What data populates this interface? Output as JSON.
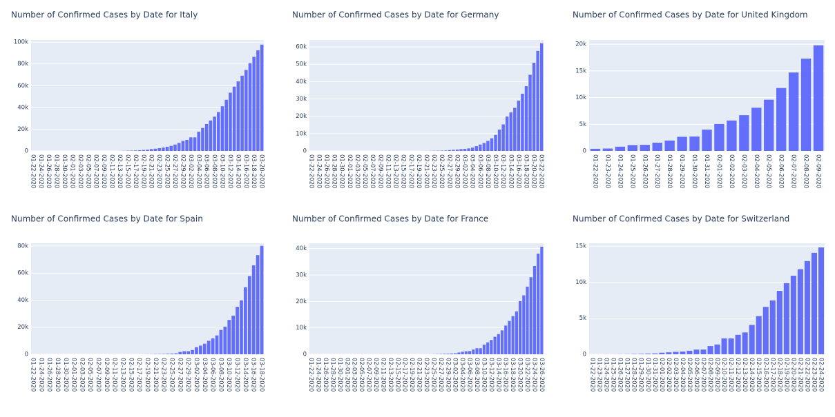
{
  "chart_data": [
    {
      "type": "bar",
      "title": "Number of Confirmed Cases by Date for Italy",
      "color": "#636efa",
      "grid": true,
      "categories": [
        "01-22-2020",
        null,
        "01-24-2020",
        null,
        "01-26-2020",
        null,
        "01-28-2020",
        null,
        "01-30-2020",
        null,
        "02-01-2020",
        null,
        "02-03-2020",
        null,
        "02-05-2020",
        null,
        "02-07-2020",
        null,
        "02-09-2020",
        null,
        "02-11-2020",
        null,
        "02-13-2020",
        null,
        "02-15-2020",
        null,
        "02-17-2020",
        null,
        "02-19-2020",
        null,
        "02-21-2020",
        null,
        "02-23-2020",
        null,
        "02-25-2020",
        null,
        "02-27-2020",
        null,
        "02-29-2020",
        null,
        "03-02-2020",
        null,
        "03-04-2020",
        null,
        "03-06-2020",
        null,
        "03-08-2020",
        null,
        "03-10-2020",
        null,
        "03-12-2020",
        null,
        "03-14-2020",
        null,
        "03-16-2020",
        null,
        "03-18-2020",
        null,
        "03-20-2020"
      ],
      "values": [
        0,
        0,
        0,
        0,
        0,
        0,
        0,
        0,
        0,
        2,
        2,
        2,
        2,
        2,
        2,
        2,
        3,
        3,
        3,
        3,
        3,
        20,
        62,
        155,
        229,
        322,
        453,
        655,
        888,
        1128,
        1694,
        2036,
        2502,
        3089,
        3858,
        4636,
        5883,
        7375,
        9172,
        10149,
        12462,
        12462,
        17660,
        21157,
        24747,
        27980,
        31506,
        35713,
        41035,
        47021,
        53578,
        59138,
        63927,
        69176,
        74386,
        80589,
        86498,
        92472,
        97689
      ],
      "ylim": [
        0,
        102000
      ],
      "yticks": [
        0,
        {
          "value": 20000,
          "label": "20k"
        },
        {
          "value": 40000,
          "label": "40k"
        },
        {
          "value": 60000,
          "label": "60k"
        },
        {
          "value": 80000,
          "label": "80k"
        },
        {
          "value": 100000,
          "label": "100k"
        }
      ]
    },
    {
      "type": "bar",
      "title": "Number of Confirmed Cases by Date for Germany",
      "color": "#636efa",
      "grid": true,
      "categories": [
        "01-22-2020",
        null,
        "01-24-2020",
        null,
        "01-26-2020",
        null,
        "01-28-2020",
        null,
        "01-30-2020",
        null,
        "02-01-2020",
        null,
        "02-03-2020",
        null,
        "02-05-2020",
        null,
        "02-07-2020",
        null,
        "02-09-2020",
        null,
        "02-11-2020",
        null,
        "02-13-2020",
        null,
        "02-15-2020",
        null,
        "02-17-2020",
        null,
        "02-19-2020",
        null,
        "02-21-2020",
        null,
        "02-23-2020",
        null,
        "02-25-2020",
        null,
        "02-27-2020",
        null,
        "02-29-2020",
        null,
        "03-02-2020",
        null,
        "03-04-2020",
        null,
        "03-06-2020",
        null,
        "03-08-2020",
        null,
        "03-10-2020",
        null,
        "03-12-2020",
        null,
        "03-14-2020",
        null,
        "03-16-2020",
        null,
        "03-18-2020",
        null,
        "03-20-2020",
        null,
        "03-22-2020"
      ],
      "values": [
        0,
        0,
        0,
        0,
        0,
        1,
        4,
        4,
        4,
        5,
        8,
        10,
        12,
        12,
        12,
        12,
        13,
        13,
        14,
        14,
        16,
        16,
        16,
        16,
        16,
        16,
        16,
        17,
        27,
        46,
        57,
        79,
        130,
        159,
        196,
        262,
        482,
        670,
        795,
        1040,
        1176,
        1457,
        1908,
        2745,
        3675,
        4585,
        5795,
        7272,
        9257,
        12327,
        15320,
        19848,
        22213,
        24873,
        29056,
        32986,
        37323,
        43938,
        50871,
        57695,
        62095
      ],
      "ylim": [
        0,
        64000
      ],
      "yticks": [
        0,
        {
          "value": 10000,
          "label": "10k"
        },
        {
          "value": 20000,
          "label": "20k"
        },
        {
          "value": 30000,
          "label": "30k"
        },
        {
          "value": 40000,
          "label": "40k"
        },
        {
          "value": 50000,
          "label": "50k"
        },
        {
          "value": 60000,
          "label": "60k"
        }
      ]
    },
    {
      "type": "bar",
      "title": "Number of Confirmed Cases by Date for United Kingdom",
      "color": "#636efa",
      "grid": true,
      "categories": [
        "01-22-2020",
        "01-23-2020",
        "01-24-2020",
        "01-25-2020",
        "01-26-2020",
        "01-27-2020",
        "01-28-2020",
        "01-29-2020",
        "01-30-2020",
        "01-31-2020",
        "02-01-2020",
        "02-02-2020",
        "02-03-2020",
        "02-04-2020",
        "02-05-2020",
        "02-06-2020",
        "02-07-2020",
        "02-08-2020",
        "02-09-2020"
      ],
      "values": [
        400,
        450,
        800,
        1100,
        1150,
        1550,
        1950,
        2650,
        2700,
        4000,
        5050,
        5700,
        6700,
        8100,
        9600,
        11800,
        14700,
        17300,
        19800
      ],
      "ylim": [
        0,
        20800
      ],
      "yticks": [
        0,
        {
          "value": 5000,
          "label": "5k"
        },
        {
          "value": 10000,
          "label": "10k"
        },
        {
          "value": 15000,
          "label": "15k"
        },
        {
          "value": 20000,
          "label": "20k"
        }
      ]
    },
    {
      "type": "bar",
      "title": "Number of Confirmed Cases by Date for Spain",
      "color": "#636efa",
      "grid": true,
      "categories": [
        "01-22-2020",
        null,
        "01-24-2020",
        null,
        "01-26-2020",
        null,
        "01-28-2020",
        null,
        "01-30-2020",
        null,
        "02-01-2020",
        null,
        "02-03-2020",
        null,
        "02-05-2020",
        null,
        "02-07-2020",
        null,
        "02-09-2020",
        null,
        "02-11-2020",
        null,
        "02-13-2020",
        null,
        "02-15-2020",
        null,
        "02-17-2020",
        null,
        "02-19-2020",
        null,
        "02-21-2020",
        null,
        "02-23-2020",
        null,
        "02-25-2020",
        null,
        "02-27-2020",
        null,
        "02-29-2020",
        null,
        "03-02-2020",
        null,
        "03-04-2020",
        null,
        "03-06-2020",
        null,
        "03-08-2020",
        null,
        "03-10-2020",
        null,
        "03-12-2020",
        null,
        "03-14-2020",
        null,
        "03-16-2020",
        null,
        "03-18-2020"
      ],
      "values": [
        0,
        0,
        0,
        0,
        0,
        0,
        0,
        0,
        0,
        0,
        1,
        1,
        1,
        1,
        1,
        1,
        1,
        1,
        2,
        2,
        2,
        2,
        2,
        6,
        13,
        15,
        32,
        45,
        84,
        120,
        165,
        222,
        261,
        401,
        500,
        674,
        1695,
        2277,
        2277,
        3146,
        5232,
        6391,
        7798,
        9942,
        11748,
        13910,
        17963,
        20410,
        25374,
        28572,
        35136,
        39885,
        49515,
        57786,
        65719,
        73235,
        80110
      ],
      "ylim": [
        0,
        82000
      ],
      "yticks": [
        0,
        {
          "value": 20000,
          "label": "20k"
        },
        {
          "value": 40000,
          "label": "40k"
        },
        {
          "value": 60000,
          "label": "60k"
        },
        {
          "value": 80000,
          "label": "80k"
        }
      ]
    },
    {
      "type": "bar",
      "title": "Number of Confirmed Cases by Date for France",
      "color": "#636efa",
      "grid": true,
      "categories": [
        "01-22-2020",
        null,
        "01-24-2020",
        null,
        "01-26-2020",
        null,
        "01-28-2020",
        null,
        "01-30-2020",
        null,
        "02-01-2020",
        null,
        "02-03-2020",
        null,
        "02-05-2020",
        null,
        "02-07-2020",
        null,
        "02-09-2020",
        null,
        "02-11-2020",
        null,
        "02-13-2020",
        null,
        "02-15-2020",
        null,
        "02-17-2020",
        null,
        "02-19-2020",
        null,
        "02-21-2020",
        null,
        "02-23-2020",
        null,
        "02-25-2020",
        null,
        "02-27-2020",
        null,
        "02-29-2020",
        null,
        "03-02-2020",
        null,
        "03-04-2020",
        null,
        "03-06-2020",
        null,
        "03-08-2020",
        null,
        "03-10-2020",
        null,
        "03-12-2020",
        null,
        "03-14-2020",
        null,
        "03-16-2020",
        null,
        "03-18-2020",
        null,
        "03-20-2020",
        null,
        "03-22-2020",
        null,
        "03-24-2020",
        null,
        "03-26-2020"
      ],
      "values": [
        0,
        0,
        2,
        3,
        3,
        3,
        4,
        5,
        5,
        5,
        6,
        6,
        6,
        6,
        6,
        6,
        6,
        11,
        11,
        11,
        11,
        11,
        11,
        11,
        12,
        12,
        12,
        12,
        12,
        12,
        12,
        14,
        18,
        38,
        57,
        100,
        130,
        191,
        204,
        285,
        377,
        653,
        949,
        1126,
        1209,
        1784,
        2284,
        2284,
        3661,
        4499,
        5423,
        6633,
        7652,
        9043,
        10871,
        12612,
        14459,
        16243,
        20123,
        22304,
        25600,
        29155,
        33402,
        38105,
        40708
      ],
      "ylim": [
        0,
        42000
      ],
      "yticks": [
        0,
        {
          "value": 10000,
          "label": "10k"
        },
        {
          "value": 20000,
          "label": "20k"
        },
        {
          "value": 30000,
          "label": "30k"
        },
        {
          "value": 40000,
          "label": "40k"
        }
      ]
    },
    {
      "type": "bar",
      "title": "Number of Confirmed Cases by Date for Switzerland",
      "color": "#636efa",
      "grid": true,
      "categories": [
        "01-22-2020",
        "01-23-2020",
        "01-24-2020",
        "01-25-2020",
        "01-26-2020",
        "01-27-2020",
        "01-28-2020",
        "01-29-2020",
        "01-30-2020",
        "01-31-2020",
        "02-01-2020",
        "02-02-2020",
        "02-03-2020",
        "02-04-2020",
        "02-05-2020",
        "02-06-2020",
        "02-07-2020",
        "02-08-2020",
        "02-09-2020",
        "02-10-2020",
        "02-11-2020",
        "02-12-2020",
        "02-13-2020",
        "02-14-2020",
        "02-15-2020",
        "02-16-2020",
        "02-17-2020",
        "02-18-2020",
        "02-19-2020",
        "02-20-2020",
        "02-21-2020",
        "02-22-2020",
        "02-23-2020",
        "02-24-2020"
      ],
      "values": [
        1,
        1,
        8,
        8,
        18,
        27,
        42,
        56,
        90,
        114,
        214,
        268,
        337,
        374,
        491,
        652,
        652,
        1139,
        1359,
        2200,
        2200,
        2700,
        3028,
        4075,
        5294,
        6575,
        7474,
        8795,
        9877,
        10897,
        11811,
        12928,
        14076,
        14829
      ],
      "ylim": [
        0,
        15400
      ],
      "yticks": [
        0,
        {
          "value": 5000,
          "label": "5k"
        },
        {
          "value": 10000,
          "label": "10k"
        },
        {
          "value": 15000,
          "label": "15k"
        }
      ]
    }
  ]
}
